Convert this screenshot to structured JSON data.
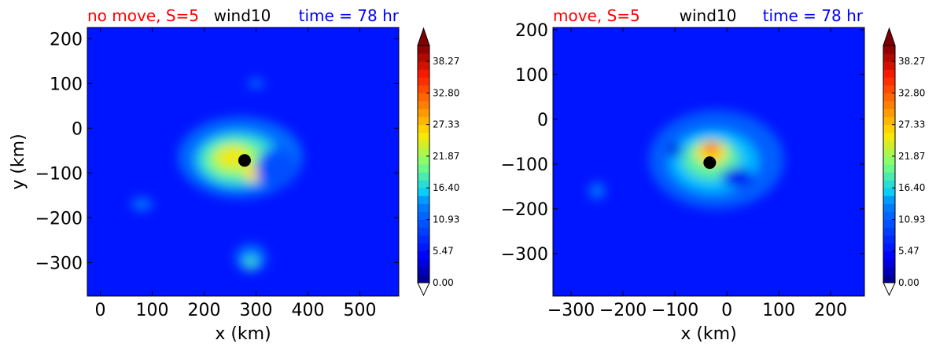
{
  "chart_data": [
    {
      "type": "heatmap",
      "title_left": "no move, S=5",
      "title_center": "wind10",
      "title_right": "time = 78 hr",
      "title_colors": {
        "left": "#ff0000",
        "center": "#000000",
        "right": "#0000ff"
      },
      "xlabel": "x (km)",
      "ylabel": "y (km)",
      "xlim": [
        -25,
        575
      ],
      "ylim": [
        -375,
        225
      ],
      "xticks": [
        0,
        100,
        200,
        300,
        400,
        500
      ],
      "yticks": [
        200,
        100,
        0,
        -100,
        -200,
        -300
      ],
      "colorbar_ticks": [
        "0.00",
        "5.47",
        "10.93",
        "16.40",
        "21.87",
        "27.33",
        "32.80",
        "38.27"
      ],
      "colorbar_range": [
        0,
        41
      ],
      "colorbar_extend": "both",
      "background_value": 6,
      "center_marker": {
        "x": 278,
        "y": -72,
        "color": "#000000"
      },
      "features": [
        {
          "x": 270,
          "y": -65,
          "rx": 120,
          "ry": 90,
          "value": 12
        },
        {
          "x": 265,
          "y": -70,
          "rx": 80,
          "ry": 60,
          "value": 17
        },
        {
          "x": 260,
          "y": -70,
          "rx": 55,
          "ry": 40,
          "value": 21
        },
        {
          "x": 255,
          "y": -65,
          "rx": 32,
          "ry": 25,
          "value": 25
        },
        {
          "x": 300,
          "y": -100,
          "rx": 25,
          "ry": 18,
          "value": 26
        },
        {
          "x": 340,
          "y": -90,
          "rx": 40,
          "ry": 45,
          "value": 10
        },
        {
          "x": 300,
          "y": 100,
          "rx": 15,
          "ry": 10,
          "value": 13
        },
        {
          "x": 290,
          "y": -290,
          "rx": 30,
          "ry": 30,
          "value": 13
        },
        {
          "x": 290,
          "y": -300,
          "rx": 12,
          "ry": 12,
          "value": 18
        },
        {
          "x": 80,
          "y": -170,
          "rx": 20,
          "ry": 14,
          "value": 13
        }
      ]
    },
    {
      "type": "heatmap",
      "title_left": "move, S=5",
      "title_center": "wind10",
      "title_right": "time = 78 hr",
      "title_colors": {
        "left": "#ff0000",
        "center": "#000000",
        "right": "#0000ff"
      },
      "xlabel": "x (km)",
      "ylabel": "",
      "xlim": [
        -335,
        265
      ],
      "ylim": [
        -395,
        205
      ],
      "xticks": [
        -300,
        -200,
        -100,
        0,
        100,
        200
      ],
      "yticks": [
        200,
        100,
        0,
        -100,
        -200,
        -300
      ],
      "colorbar_ticks": [
        "0.00",
        "5.47",
        "10.93",
        "16.40",
        "21.87",
        "27.33",
        "32.80",
        "38.27"
      ],
      "colorbar_range": [
        0,
        41
      ],
      "colorbar_extend": "both",
      "background_value": 6,
      "center_marker": {
        "x": -33,
        "y": -97,
        "color": "#000000"
      },
      "features": [
        {
          "x": -20,
          "y": -90,
          "rx": 130,
          "ry": 110,
          "value": 11
        },
        {
          "x": -25,
          "y": -95,
          "rx": 85,
          "ry": 70,
          "value": 15
        },
        {
          "x": -30,
          "y": -90,
          "rx": 55,
          "ry": 45,
          "value": 19
        },
        {
          "x": -30,
          "y": -75,
          "rx": 30,
          "ry": 25,
          "value": 26
        },
        {
          "x": -30,
          "y": -65,
          "rx": 15,
          "ry": 12,
          "value": 33
        },
        {
          "x": 20,
          "y": -130,
          "rx": 30,
          "ry": 20,
          "value": 4
        },
        {
          "x": -250,
          "y": -160,
          "rx": 15,
          "ry": 18,
          "value": 13
        },
        {
          "x": -100,
          "y": -70,
          "rx": 15,
          "ry": 12,
          "value": 3
        }
      ]
    }
  ]
}
